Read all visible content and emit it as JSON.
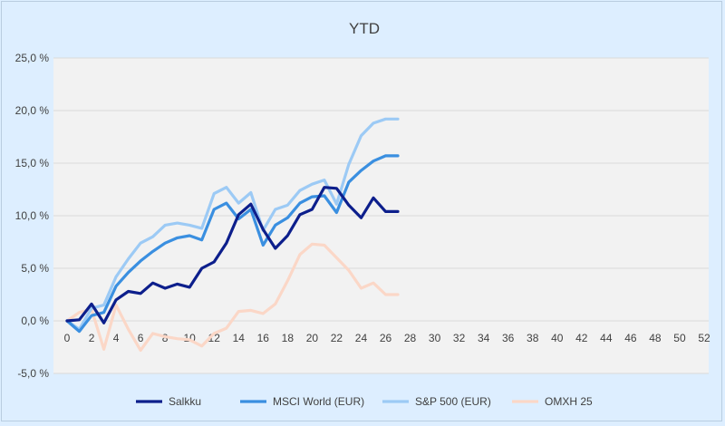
{
  "chart_data": {
    "type": "line",
    "title": "YTD",
    "xlabel": "",
    "ylabel": "",
    "xlim": [
      0,
      52
    ],
    "ylim": [
      -5,
      25
    ],
    "x_ticks": [
      0,
      2,
      4,
      6,
      8,
      10,
      12,
      14,
      16,
      18,
      20,
      22,
      24,
      26,
      28,
      30,
      32,
      34,
      36,
      38,
      40,
      42,
      44,
      46,
      48,
      50,
      52
    ],
    "y_ticks": [
      -5,
      0,
      5,
      10,
      15,
      20,
      25
    ],
    "y_tick_labels": [
      "-5,0 %",
      "0,0 %",
      "5,0 %",
      "10,0 %",
      "15,0 %",
      "20,0 %",
      "25,0 %"
    ],
    "grid": "horizontal",
    "legend": "bottom",
    "x": [
      0,
      1,
      2,
      3,
      4,
      5,
      6,
      7,
      8,
      9,
      10,
      11,
      12,
      13,
      14,
      15,
      16,
      17,
      18,
      19,
      20,
      21,
      22,
      23,
      24,
      25,
      26,
      27
    ],
    "series": [
      {
        "name": "Salkku",
        "color": "#0d1f8c",
        "values": [
          0,
          0.1,
          1.6,
          -0.2,
          2,
          2.8,
          2.6,
          3.6,
          3.1,
          3.5,
          3.2,
          5,
          5.6,
          7.4,
          10.1,
          11.1,
          8.7,
          6.9,
          8.1,
          10.1,
          10.6,
          12.7,
          12.6,
          11,
          9.8,
          11.7,
          10.4,
          10.4
        ]
      },
      {
        "name": "MSCI World (EUR)",
        "color": "#3a8fe0",
        "values": [
          0,
          -1,
          0.5,
          0.8,
          3.3,
          4.6,
          5.7,
          6.6,
          7.4,
          7.9,
          8.1,
          7.7,
          10.6,
          11.2,
          9.7,
          10.6,
          7.2,
          9.1,
          9.8,
          11.2,
          11.8,
          11.9,
          10.3,
          13.2,
          14.3,
          15.2,
          15.7,
          15.7
        ]
      },
      {
        "name": "S&P 500 (EUR)",
        "color": "#9ccaf5",
        "values": [
          0,
          -0.8,
          1.2,
          1.5,
          4.2,
          5.9,
          7.4,
          8,
          9.1,
          9.3,
          9.1,
          8.8,
          12.1,
          12.7,
          11.2,
          12.2,
          8.6,
          10.6,
          11,
          12.4,
          13,
          13.4,
          11.1,
          14.9,
          17.6,
          18.8,
          19.2,
          19.2
        ]
      },
      {
        "name": "OMXH 25",
        "color": "#fbd7c7",
        "values": [
          0,
          0.8,
          1.1,
          -2.7,
          1.5,
          -0.8,
          -2.8,
          -1.2,
          -1.5,
          -1.7,
          -1.8,
          -2.4,
          -1.2,
          -0.7,
          0.9,
          1,
          0.7,
          1.6,
          3.8,
          6.3,
          7.3,
          7.2,
          6,
          4.8,
          3.1,
          3.6,
          2.5,
          2.5
        ]
      }
    ]
  }
}
